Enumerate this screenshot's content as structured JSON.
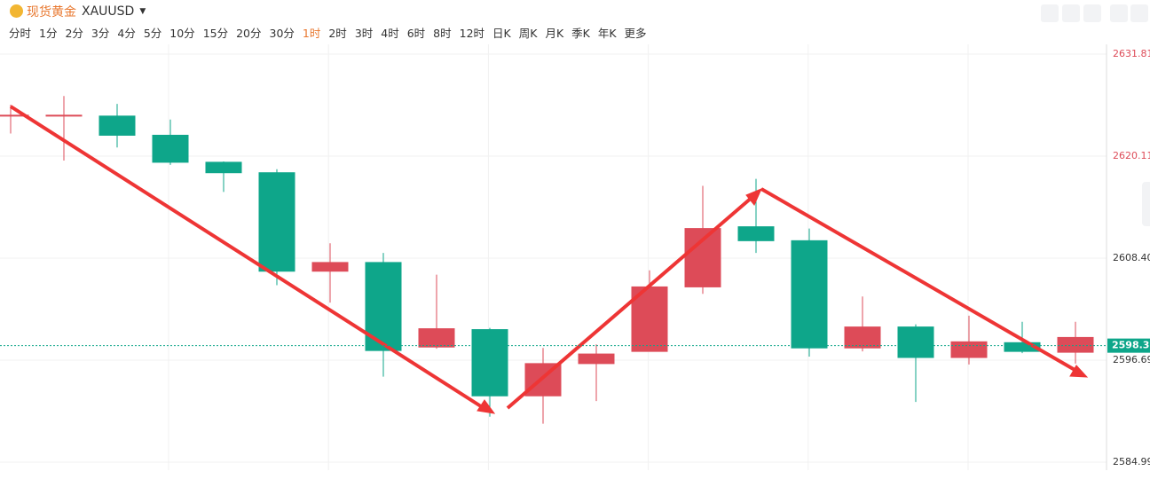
{
  "toolbar": {
    "symbol_name": "现货黄金",
    "symbol_code": "XAUUSD",
    "periods": [
      "分时",
      "1分",
      "2分",
      "3分",
      "4分",
      "5分",
      "10分",
      "15分",
      "20分",
      "30分",
      "1时",
      "2时",
      "3时",
      "4时",
      "6时",
      "8时",
      "12时",
      "日K",
      "周K",
      "月K",
      "季K",
      "年K",
      "更多"
    ],
    "active_period": 10
  },
  "chart_data": {
    "type": "candlestick",
    "categories": [
      null,
      null,
      null,
      null,
      null,
      null,
      null,
      null,
      null,
      null,
      null,
      null,
      null,
      null,
      null,
      null,
      null,
      null,
      null,
      null,
      null
    ],
    "open": [
      2624.8,
      2624.8,
      2624.7,
      2622.5,
      2619.4,
      2618.2,
      2606.9,
      2607.9,
      2598.2,
      2600.2,
      2592.6,
      2596.3,
      2597.7,
      2605.1,
      2612.0,
      2610.4,
      2598.1,
      2600.5,
      2597.0,
      2598.7,
      2597.6
    ],
    "high": [
      2626.0,
      2627.0,
      2626.1,
      2624.3,
      2619.5,
      2618.6,
      2610.1,
      2609.0,
      2606.5,
      2600.4,
      2598.1,
      2598.5,
      2607.0,
      2616.7,
      2617.5,
      2611.8,
      2604.0,
      2600.8,
      2601.8,
      2601.1,
      2601.1
    ],
    "low": [
      2622.7,
      2619.6,
      2621.1,
      2619.1,
      2616.0,
      2605.3,
      2603.3,
      2594.8,
      2598.0,
      2590.2,
      2589.4,
      2592.0,
      2597.7,
      2604.3,
      2609.0,
      2597.1,
      2597.7,
      2591.9,
      2596.2,
      2597.5,
      2596.3
    ],
    "close": [
      2624.8,
      2624.8,
      2622.5,
      2619.4,
      2618.2,
      2606.9,
      2607.9,
      2597.8,
      2600.3,
      2592.6,
      2596.3,
      2597.4,
      2605.1,
      2611.8,
      2610.4,
      2598.1,
      2600.5,
      2597.0,
      2598.8,
      2597.7,
      2599.3
    ],
    "up_color": "#dd4b58",
    "down_color": "#0ea68a",
    "ylim": [
      2584.99,
      2631.81
    ],
    "yticks": [
      2584.99,
      2596.69,
      {
        "value": 2608.4,
        "label": "2608.40"
      },
      2620.11,
      2631.81
    ],
    "current_price": 2598.36,
    "grid": true
  }
}
